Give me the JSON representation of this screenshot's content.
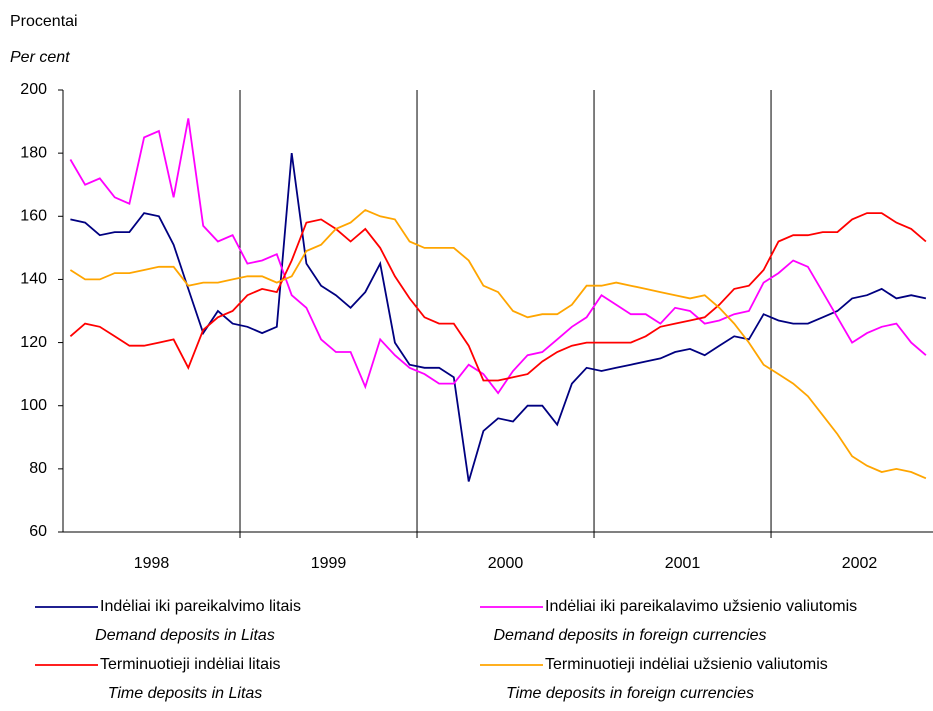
{
  "chart_data": {
    "type": "line",
    "y_label": "Procentai",
    "y_label_en": "Per cent",
    "x": [
      1998.042,
      1998.125,
      1998.208,
      1998.292,
      1998.375,
      1998.458,
      1998.542,
      1998.625,
      1998.708,
      1998.792,
      1998.875,
      1998.958,
      1999.042,
      1999.125,
      1999.208,
      1999.292,
      1999.375,
      1999.458,
      1999.542,
      1999.625,
      1999.708,
      1999.792,
      1999.875,
      1999.958,
      2000.042,
      2000.125,
      2000.208,
      2000.292,
      2000.375,
      2000.458,
      2000.542,
      2000.625,
      2000.708,
      2000.792,
      2000.875,
      2000.958,
      2001.042,
      2001.125,
      2001.208,
      2001.292,
      2001.375,
      2001.458,
      2001.542,
      2001.625,
      2001.708,
      2001.792,
      2001.875,
      2001.958,
      2002.042,
      2002.125,
      2002.208,
      2002.292,
      2002.375,
      2002.458,
      2002.542,
      2002.625,
      2002.708,
      2002.792,
      2002.875
    ],
    "xlim": [
      1998,
      2002.915
    ],
    "xticks": [
      {
        "value": 1998.5,
        "label": "1998"
      },
      {
        "value": 1999.5,
        "label": "1999"
      },
      {
        "value": 2000.5,
        "label": "2000"
      },
      {
        "value": 2001.5,
        "label": "2001"
      },
      {
        "value": 2002.5,
        "label": "2002"
      }
    ],
    "xgrid": [
      1999,
      2000,
      2001,
      2002
    ],
    "ylim": [
      60,
      200
    ],
    "yticks": [
      60,
      80,
      100,
      120,
      140,
      160,
      180,
      200
    ],
    "series": [
      {
        "name": "Indėliai iki pareikalvimo litais",
        "name_en": "Demand deposits in Litas",
        "color": "#000080",
        "values": [
          159,
          158,
          154,
          155,
          155,
          161,
          160,
          151,
          137,
          123,
          130,
          126,
          125,
          123,
          125,
          180,
          145,
          138,
          135,
          131,
          136,
          145,
          120,
          113,
          112,
          112,
          109,
          76,
          92,
          96,
          95,
          100,
          100,
          94,
          107,
          112,
          111,
          112,
          113,
          114,
          115,
          117,
          118,
          116,
          119,
          122,
          121,
          129,
          127,
          126,
          126,
          128,
          130,
          134,
          135,
          137,
          134,
          135,
          134
        ]
      },
      {
        "name": "Indėliai iki pareikalavimo užsienio valiutomis",
        "name_en": "Demand deposits in foreign currencies",
        "color": "#ff00ff",
        "values": [
          178,
          170,
          172,
          166,
          164,
          185,
          187,
          166,
          191,
          157,
          152,
          154,
          145,
          146,
          148,
          135,
          131,
          121,
          117,
          117,
          106,
          121,
          116,
          112,
          110,
          107,
          107,
          113,
          110,
          104,
          111,
          116,
          117,
          121,
          125,
          128,
          135,
          132,
          129,
          129,
          126,
          131,
          130,
          126,
          127,
          129,
          130,
          139,
          142,
          146,
          144,
          136,
          128,
          120,
          123,
          125,
          126,
          120,
          116
        ]
      },
      {
        "name": "Terminuotieji indėliai litais",
        "name_en": "Time deposits in Litas",
        "color": "#ff0000",
        "values": [
          122,
          126,
          125,
          122,
          119,
          119,
          120,
          121,
          112,
          124,
          128,
          130,
          135,
          137,
          136,
          146,
          158,
          159,
          156,
          152,
          156,
          150,
          141,
          134,
          128,
          126,
          126,
          119,
          108,
          108,
          109,
          110,
          114,
          117,
          119,
          120,
          120,
          120,
          120,
          122,
          125,
          126,
          127,
          128,
          132,
          137,
          138,
          143,
          152,
          154,
          154,
          155,
          155,
          159,
          161,
          161,
          158,
          156,
          152
        ]
      },
      {
        "name": "Terminuotieji indėliai užsienio valiutomis",
        "name_en": "Time deposits in foreign currencies",
        "color": "#ffa500",
        "values": [
          143,
          140,
          140,
          142,
          142,
          143,
          144,
          144,
          138,
          139,
          139,
          140,
          141,
          141,
          139,
          141,
          149,
          151,
          156,
          158,
          162,
          160,
          159,
          152,
          150,
          150,
          150,
          146,
          138,
          136,
          130,
          128,
          129,
          129,
          132,
          138,
          138,
          139,
          138,
          137,
          136,
          135,
          134,
          135,
          131,
          126,
          120,
          113,
          110,
          107,
          103,
          97,
          91,
          84,
          81,
          79,
          80,
          79,
          77
        ]
      }
    ]
  }
}
